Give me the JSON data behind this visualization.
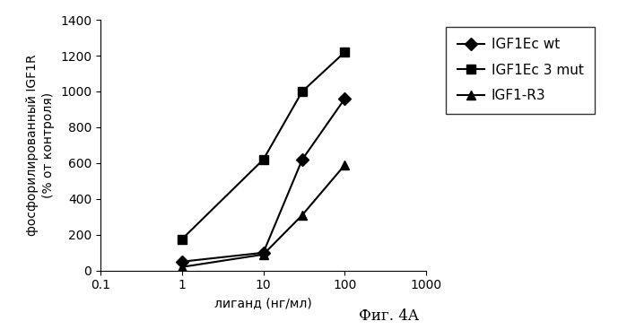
{
  "series": [
    {
      "label": "IGF1Ec wt",
      "x": [
        1,
        10,
        30,
        100
      ],
      "y": [
        50,
        100,
        620,
        960
      ],
      "marker": "D",
      "color": "#000000",
      "linestyle": "-",
      "markersize": 7,
      "zorder": 3
    },
    {
      "label": "IGF1Ec 3 mut",
      "x": [
        1,
        10,
        30,
        100
      ],
      "y": [
        175,
        620,
        1000,
        1220
      ],
      "marker": "s",
      "color": "#000000",
      "linestyle": "-",
      "markersize": 7,
      "zorder": 3
    },
    {
      "label": "IGF1-R3",
      "x": [
        1,
        10,
        30,
        100
      ],
      "y": [
        20,
        90,
        310,
        590
      ],
      "marker": "^",
      "color": "#000000",
      "linestyle": "-",
      "markersize": 7,
      "zorder": 3
    }
  ],
  "xlabel": "лиганд (нг/мл)",
  "ylabel": "фосфорилированный IGF1R\n(% от контроля)",
  "xlim": [
    0.1,
    1000
  ],
  "ylim": [
    0,
    1400
  ],
  "yticks": [
    0,
    200,
    400,
    600,
    800,
    1000,
    1200,
    1400
  ],
  "xticks": [
    0.1,
    1,
    10,
    100,
    1000
  ],
  "xtick_labels": [
    "0.1",
    "1",
    "10",
    "100",
    "1000"
  ],
  "caption": "Фиг. 4A",
  "background_color": "#ffffff",
  "legend_fontsize": 11,
  "axis_fontsize": 10,
  "tick_fontsize": 10,
  "caption_fontsize": 12
}
